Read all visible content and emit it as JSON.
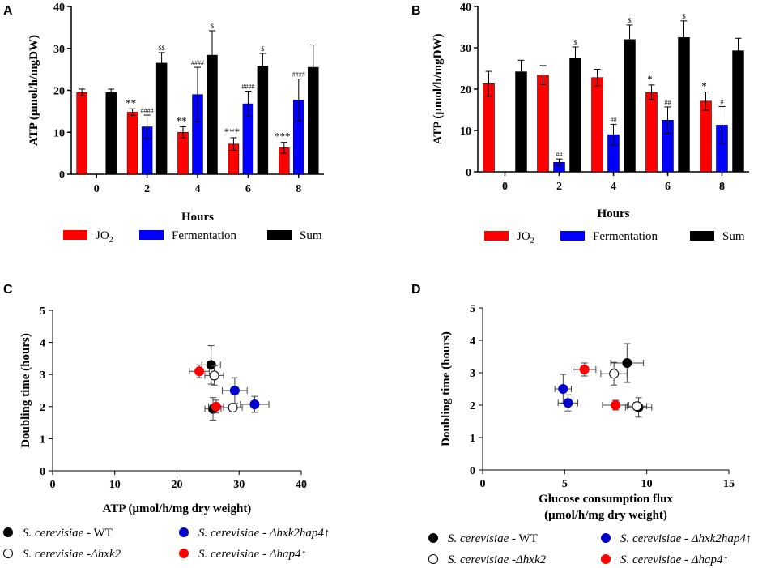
{
  "panels": {
    "A": "A",
    "B": "B",
    "C": "C",
    "D": "D"
  },
  "colors": {
    "jo2": "#ff0000",
    "fermentation": "#0000ff",
    "sum": "#000000",
    "wt": "#000000",
    "hxk2hap4": "#0000cc",
    "hap4": "#ff0000"
  },
  "chart_data": [
    {
      "id": "A",
      "type": "bar",
      "xlabel": "Hours",
      "ylabel": "ATP (μmol/h/mgDW)",
      "ylim": [
        0,
        40
      ],
      "yticks": [
        "0",
        "10",
        "20",
        "30",
        "40"
      ],
      "categories": [
        "0",
        "2",
        "4",
        "6",
        "8"
      ],
      "series": [
        {
          "name": "JO",
          "sub": "2",
          "values": [
            19.5,
            14.8,
            10.0,
            7.2,
            6.3
          ],
          "err": [
            0.8,
            0.8,
            1.3,
            1.5,
            1.3
          ],
          "sig": [
            "",
            "**",
            "**",
            "***",
            "***"
          ]
        },
        {
          "name": "Fermentation",
          "values": [
            0,
            11.3,
            19.0,
            16.8,
            17.7
          ],
          "err": [
            0,
            2.8,
            6.5,
            3.0,
            5.0
          ],
          "sig": [
            "",
            "####",
            "####",
            "####",
            "####"
          ]
        },
        {
          "name": "Sum",
          "values": [
            19.5,
            26.5,
            28.4,
            25.8,
            25.5
          ],
          "err": [
            0.8,
            2.5,
            5.8,
            3.0,
            5.3
          ],
          "sig": [
            "",
            "$$",
            "$",
            "$",
            ""
          ]
        }
      ]
    },
    {
      "id": "B",
      "type": "bar",
      "xlabel": "Hours",
      "ylabel": "ATP (μmol/h/mgDW)",
      "ylim": [
        0,
        40
      ],
      "yticks": [
        "0",
        "10",
        "20",
        "30",
        "40"
      ],
      "categories": [
        "0",
        "2",
        "4",
        "6",
        "8"
      ],
      "series": [
        {
          "name": "JO",
          "sub": "2",
          "values": [
            21.3,
            23.4,
            22.8,
            19.2,
            17.1
          ],
          "err": [
            3.0,
            2.3,
            2.0,
            1.8,
            2.2
          ],
          "sig": [
            "",
            "",
            "",
            "*",
            "*"
          ]
        },
        {
          "name": "Fermentation",
          "values": [
            0,
            2.3,
            9.0,
            12.5,
            11.3
          ],
          "err": [
            0,
            0.8,
            2.5,
            3.2,
            4.5
          ],
          "sig": [
            "",
            "##",
            "##",
            "##",
            "#"
          ]
        },
        {
          "name": "Sum",
          "values": [
            24.2,
            27.4,
            32.0,
            32.5,
            29.3
          ],
          "err": [
            2.8,
            2.8,
            3.5,
            4.0,
            3.0
          ],
          "sig": [
            "",
            "$",
            "$",
            "$",
            ""
          ]
        }
      ]
    },
    {
      "id": "C",
      "type": "scatter",
      "xlabel": "ATP (μmol/h/mg dry weight)",
      "ylabel": "Doubling time (hours)",
      "xlim": [
        0,
        40
      ],
      "ylim": [
        0,
        5
      ],
      "xticks": [
        "0",
        "10",
        "20",
        "30",
        "40"
      ],
      "yticks": [
        "0",
        "1",
        "2",
        "3",
        "4",
        "5"
      ],
      "points": [
        {
          "strain": "wt",
          "x": 25.5,
          "y": 3.3,
          "xerr": 1.5,
          "yerr": 0.6
        },
        {
          "strain": "wt",
          "x": 25.8,
          "y": 1.93,
          "xerr": 1.3,
          "yerr": 0.35
        },
        {
          "strain": "hxk2",
          "x": 26.0,
          "y": 2.97,
          "xerr": 1.5,
          "yerr": 0.3
        },
        {
          "strain": "hxk2",
          "x": 29.0,
          "y": 1.97,
          "xerr": 1.5,
          "yerr": 0.12
        },
        {
          "strain": "hxk2hap4",
          "x": 29.3,
          "y": 2.5,
          "xerr": 2.0,
          "yerr": 0.4
        },
        {
          "strain": "hxk2hap4",
          "x": 32.5,
          "y": 2.07,
          "xerr": 2.3,
          "yerr": 0.25
        },
        {
          "strain": "hap4",
          "x": 23.6,
          "y": 3.1,
          "xerr": 1.6,
          "yerr": 0.2
        },
        {
          "strain": "hap4",
          "x": 26.3,
          "y": 2.0,
          "xerr": 1.2,
          "yerr": 0.2
        }
      ]
    },
    {
      "id": "D",
      "type": "scatter",
      "xlabel": "Glucose consumption flux",
      "xlabel2": "(μmol/h/mg dry weight)",
      "ylabel": "Doubling time (hours)",
      "xlim": [
        0,
        15
      ],
      "ylim": [
        0,
        5
      ],
      "xticks": [
        "0",
        "5",
        "10",
        "15"
      ],
      "yticks": [
        "0",
        "1",
        "2",
        "3",
        "4",
        "5"
      ],
      "points": [
        {
          "strain": "wt",
          "x": 8.8,
          "y": 3.3,
          "xerr": 1.0,
          "yerr": 0.6
        },
        {
          "strain": "wt",
          "x": 9.5,
          "y": 1.93,
          "xerr": 0.8,
          "yerr": 0.3
        },
        {
          "strain": "hxk2",
          "x": 8.0,
          "y": 2.97,
          "xerr": 0.8,
          "yerr": 0.35
        },
        {
          "strain": "hxk2",
          "x": 9.4,
          "y": 1.97,
          "xerr": 0.6,
          "yerr": 0.12
        },
        {
          "strain": "hxk2hap4",
          "x": 4.9,
          "y": 2.5,
          "xerr": 0.5,
          "yerr": 0.45
        },
        {
          "strain": "hxk2hap4",
          "x": 5.2,
          "y": 2.07,
          "xerr": 0.6,
          "yerr": 0.25
        },
        {
          "strain": "hap4",
          "x": 6.2,
          "y": 3.1,
          "xerr": 0.7,
          "yerr": 0.2
        },
        {
          "strain": "hap4",
          "x": 8.1,
          "y": 2.0,
          "xerr": 0.8,
          "yerr": 0.15
        }
      ]
    }
  ],
  "strain_legend": [
    {
      "key": "wt",
      "species": "S. cerevisiae",
      "sep": " - ",
      "strain": "WT"
    },
    {
      "key": "hxk2hap4",
      "species": "S. cerevisiae",
      "sep": " - ",
      "strain": "Δhxk2hap4↑"
    },
    {
      "key": "hxk2",
      "species": "S. cerevisiae",
      "sep": " -",
      "strain": "Δhxk2"
    },
    {
      "key": "hap4",
      "species": "S. cerevisiae",
      "sep": " - ",
      "strain": "Δhap4↑"
    }
  ]
}
